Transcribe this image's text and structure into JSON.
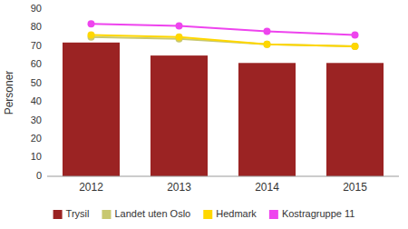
{
  "chart_data": {
    "type": "bar",
    "categories": [
      "2012",
      "2013",
      "2014",
      "2015"
    ],
    "series": [
      {
        "name": "Trysil",
        "type": "bar",
        "color": "#9B2323",
        "values": [
          72,
          65,
          61,
          61
        ]
      },
      {
        "name": "Landet uten Oslo",
        "type": "line",
        "marker": "circle",
        "color": "#C8C870",
        "values": [
          75,
          74,
          71,
          70
        ]
      },
      {
        "name": "Hedmark",
        "type": "line",
        "marker": "circle",
        "color": "#FFD700",
        "values": [
          76,
          75,
          71,
          70
        ]
      },
      {
        "name": "Kostragruppe 11",
        "type": "line",
        "marker": "circle",
        "color": "#EE44EE",
        "values": [
          82,
          81,
          78,
          76
        ]
      }
    ],
    "ylabel": "Personer",
    "ylim": [
      0,
      90
    ],
    "yticks": [
      0,
      10,
      20,
      30,
      40,
      50,
      60,
      70,
      80,
      90
    ],
    "grid": false,
    "legend": "bottom"
  }
}
